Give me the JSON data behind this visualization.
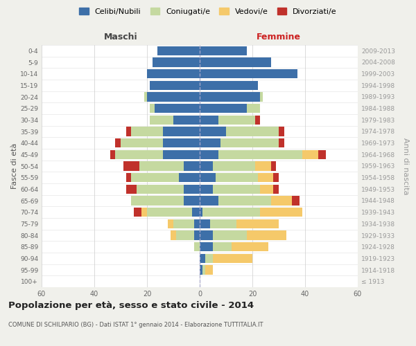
{
  "age_groups": [
    "100+",
    "95-99",
    "90-94",
    "85-89",
    "80-84",
    "75-79",
    "70-74",
    "65-69",
    "60-64",
    "55-59",
    "50-54",
    "45-49",
    "40-44",
    "35-39",
    "30-34",
    "25-29",
    "20-24",
    "15-19",
    "10-14",
    "5-9",
    "0-4"
  ],
  "birth_years": [
    "≤ 1913",
    "1914-1918",
    "1919-1923",
    "1924-1928",
    "1929-1933",
    "1934-1938",
    "1939-1943",
    "1944-1948",
    "1949-1953",
    "1954-1958",
    "1959-1963",
    "1964-1968",
    "1969-1973",
    "1974-1978",
    "1979-1983",
    "1984-1988",
    "1989-1993",
    "1994-1998",
    "1999-2003",
    "2004-2008",
    "2009-2013"
  ],
  "colors": {
    "celibi": "#3d6fa8",
    "coniugati": "#c5d9a0",
    "vedovi": "#f5c96a",
    "divorziati": "#c0312b"
  },
  "maschi": {
    "celibi": [
      0,
      0,
      0,
      0,
      2,
      2,
      3,
      6,
      6,
      8,
      6,
      14,
      14,
      14,
      10,
      17,
      20,
      19,
      20,
      18,
      16
    ],
    "coniugati": [
      0,
      0,
      0,
      2,
      7,
      8,
      17,
      20,
      18,
      18,
      17,
      18,
      16,
      12,
      9,
      2,
      1,
      0,
      0,
      0,
      0
    ],
    "vedovi": [
      0,
      0,
      0,
      0,
      2,
      2,
      2,
      0,
      0,
      0,
      0,
      0,
      0,
      0,
      0,
      0,
      0,
      0,
      0,
      0,
      0
    ],
    "divorziati": [
      0,
      0,
      0,
      0,
      0,
      0,
      3,
      0,
      4,
      2,
      6,
      2,
      2,
      2,
      0,
      0,
      0,
      0,
      0,
      0,
      0
    ]
  },
  "femmine": {
    "celibi": [
      0,
      1,
      2,
      5,
      5,
      4,
      1,
      7,
      5,
      6,
      5,
      7,
      8,
      10,
      7,
      18,
      23,
      22,
      37,
      27,
      18
    ],
    "coniugati": [
      0,
      1,
      3,
      7,
      13,
      10,
      22,
      20,
      18,
      16,
      16,
      32,
      22,
      20,
      14,
      5,
      1,
      0,
      0,
      0,
      0
    ],
    "vedovi": [
      0,
      3,
      15,
      14,
      15,
      16,
      16,
      8,
      5,
      6,
      6,
      6,
      0,
      0,
      0,
      0,
      0,
      0,
      0,
      0,
      0
    ],
    "divorziati": [
      0,
      0,
      0,
      0,
      0,
      0,
      0,
      3,
      2,
      2,
      2,
      3,
      2,
      2,
      2,
      0,
      0,
      0,
      0,
      0,
      0
    ]
  },
  "xlim": 60,
  "title": "Popolazione per età, sesso e stato civile - 2014",
  "subtitle": "COMUNE DI SCHILPARIO (BG) - Dati ISTAT 1° gennaio 2014 - Elaborazione TUTTITALIA.IT",
  "ylabel_left": "Fasce di età",
  "ylabel_right": "Anni di nascita",
  "header_maschi": "Maschi",
  "header_femmine": "Femmine",
  "legend_labels": [
    "Celibi/Nubili",
    "Coniugati/e",
    "Vedovi/e",
    "Divorziati/e"
  ],
  "bg_color": "#f0f0eb",
  "plot_bg_color": "#ffffff"
}
